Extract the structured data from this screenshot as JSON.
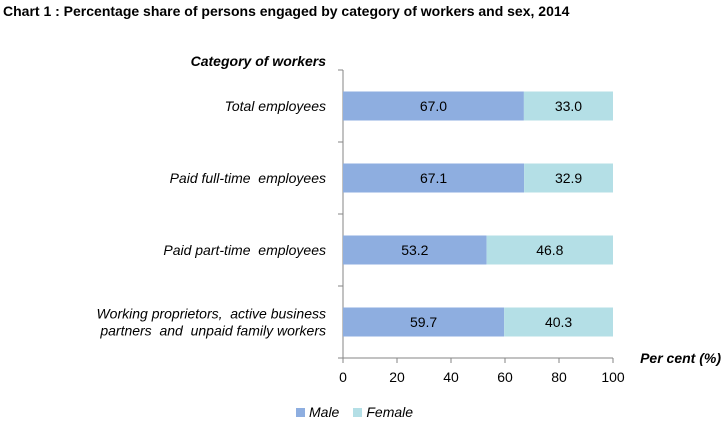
{
  "chart_data": {
    "type": "bar",
    "orientation": "horizontal",
    "stacked": true,
    "title": "Chart 1 : Percentage share of persons engaged by category of workers and sex, 2014",
    "ylabel": "Category of workers",
    "xlabel": "Per cent (%)",
    "xlim": [
      0,
      100
    ],
    "xticks": [
      0,
      20,
      40,
      60,
      80,
      100
    ],
    "categories": [
      [
        "Total employees"
      ],
      [
        "Paid full-time  employees"
      ],
      [
        "Paid part-time  employees"
      ],
      [
        "Working proprietors,  active business",
        "partners  and  unpaid family workers"
      ]
    ],
    "series": [
      {
        "name": "Male",
        "color": "#8eaee0",
        "values": [
          67.0,
          67.1,
          53.2,
          59.7
        ],
        "labels": [
          "67.0",
          "67.1",
          "53.2",
          "59.7"
        ]
      },
      {
        "name": "Female",
        "color": "#b4dfe6",
        "values": [
          33.0,
          32.9,
          46.8,
          40.3
        ],
        "labels": [
          "33.0",
          "32.9",
          "46.8",
          "40.3"
        ]
      }
    ],
    "legend": "bottom"
  }
}
